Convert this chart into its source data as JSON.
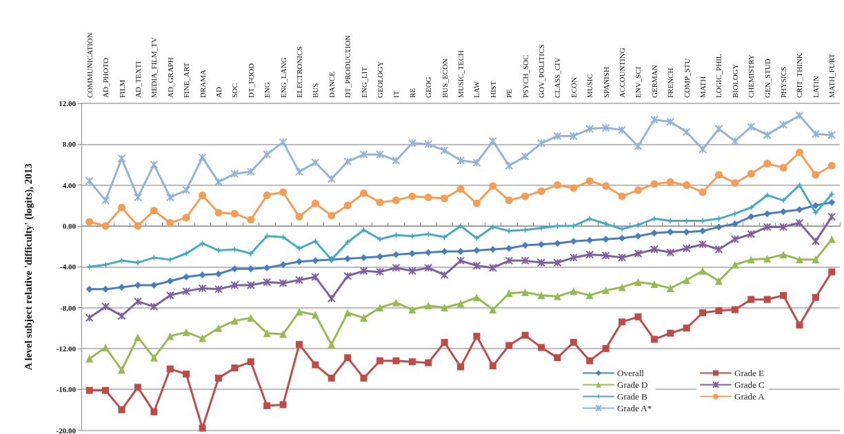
{
  "chart_data": {
    "type": "line",
    "ylabel": "A level subject relative 'difficulty' (logits), 2013",
    "categories": [
      "COMMUNICATION",
      "AD_PHOTO",
      "FILM",
      "AD_TEXTI",
      "MEDIA_FILM_TV",
      "AD_GRAPH",
      "FINE_ART",
      "DRAMA",
      "AD",
      "SOC",
      "DT_FOOD",
      "ENG",
      "ENG_LANG",
      "ELECTRONICS",
      "BUS",
      "DANCE",
      "DT_PRODUCTION",
      "ENG_LIT",
      "GEOLOGY",
      "IT",
      "RE",
      "GEOG",
      "BUS_ECON",
      "MUSIC_TECH",
      "LAW",
      "HIST",
      "PE",
      "PSYCH_SOC",
      "GOV_POLITICS",
      "CLASS_CIV",
      "ECON",
      "MUSIC",
      "SPANISH",
      "ACCOUNTING",
      "ENV_SCI",
      "GERMAN",
      "FRENCH",
      "COMP_STU",
      "MATH",
      "LOGIC_PHIL",
      "BIOLOGY",
      "CHEMISTRY",
      "GEN_STUD",
      "PHYSICS",
      "CRIT_THINK",
      "LATIN",
      "MATH_FURT"
    ],
    "series": [
      {
        "name": "Overall",
        "color": "#4a7ebb",
        "marker": "diamond",
        "values": [
          -6.2,
          -6.2,
          -6.0,
          -5.8,
          -5.8,
          -5.4,
          -5.0,
          -4.8,
          -4.7,
          -4.2,
          -4.2,
          -4.1,
          -3.8,
          -3.5,
          -3.4,
          -3.3,
          -3.2,
          -3.1,
          -3.0,
          -2.8,
          -2.7,
          -2.6,
          -2.5,
          -2.5,
          -2.4,
          -2.3,
          -2.2,
          -1.9,
          -1.8,
          -1.7,
          -1.5,
          -1.4,
          -1.3,
          -1.2,
          -1.0,
          -0.7,
          -0.6,
          -0.6,
          -0.5,
          -0.1,
          0.2,
          0.9,
          1.2,
          1.4,
          1.6,
          2.0,
          2.3
        ]
      },
      {
        "name": "Grade E",
        "color": "#be4b48",
        "marker": "square",
        "values": [
          -16.1,
          -16.1,
          -18.0,
          -15.8,
          -18.2,
          -14.0,
          -14.5,
          -19.8,
          -14.9,
          -13.9,
          -13.3,
          -17.6,
          -17.5,
          -11.6,
          -13.6,
          -14.9,
          -12.9,
          -14.9,
          -13.2,
          -13.2,
          -13.3,
          -13.4,
          -11.4,
          -13.8,
          -10.8,
          -13.7,
          -11.7,
          -10.7,
          -11.9,
          -12.9,
          -11.4,
          -13.2,
          -12.0,
          -9.4,
          -8.9,
          -11.1,
          -10.5,
          -10.0,
          -8.5,
          -8.3,
          -8.2,
          -7.2,
          -7.2,
          -6.8,
          -9.7,
          -7.0,
          -4.5
        ]
      },
      {
        "name": "Grade D",
        "color": "#98b954",
        "marker": "triangle",
        "values": [
          -13.0,
          -11.9,
          -14.1,
          -10.9,
          -12.9,
          -10.8,
          -10.4,
          -11.0,
          -10.0,
          -9.3,
          -9.0,
          -10.5,
          -10.6,
          -8.4,
          -8.7,
          -11.6,
          -8.5,
          -9.0,
          -8.0,
          -7.5,
          -8.2,
          -7.8,
          -8.0,
          -7.6,
          -7.0,
          -8.2,
          -6.6,
          -6.5,
          -6.8,
          -6.9,
          -6.4,
          -6.8,
          -6.3,
          -6.0,
          -5.5,
          -5.7,
          -6.1,
          -5.3,
          -4.4,
          -5.4,
          -3.8,
          -3.3,
          -3.2,
          -2.8,
          -3.3,
          -3.3,
          -1.3
        ]
      },
      {
        "name": "Grade C",
        "color": "#7d60a0",
        "marker": "cross",
        "values": [
          -9.0,
          -7.9,
          -8.8,
          -7.4,
          -7.9,
          -6.8,
          -6.4,
          -6.1,
          -6.2,
          -5.8,
          -5.8,
          -5.5,
          -5.6,
          -5.3,
          -5.0,
          -7.1,
          -4.9,
          -4.4,
          -4.5,
          -4.1,
          -4.4,
          -4.1,
          -4.8,
          -3.4,
          -3.9,
          -4.1,
          -3.4,
          -3.4,
          -3.6,
          -3.6,
          -3.1,
          -2.8,
          -2.9,
          -3.1,
          -2.7,
          -2.3,
          -2.6,
          -2.2,
          -1.8,
          -2.3,
          -1.3,
          -0.8,
          -0.1,
          -0.1,
          0.3,
          -1.5,
          0.9
        ]
      },
      {
        "name": "Grade B",
        "color": "#46aac5",
        "marker": "star",
        "values": [
          -4.0,
          -3.8,
          -3.4,
          -3.6,
          -3.1,
          -3.3,
          -2.7,
          -1.7,
          -2.4,
          -2.3,
          -2.7,
          -1.0,
          -1.1,
          -2.2,
          -1.5,
          -3.3,
          -1.6,
          -0.4,
          -1.3,
          -0.9,
          -1.0,
          -0.8,
          -1.1,
          0.0,
          -1.2,
          -0.1,
          -0.5,
          -0.4,
          -0.2,
          0.0,
          0.0,
          0.7,
          0.2,
          -0.3,
          0.1,
          0.7,
          0.5,
          0.5,
          0.5,
          0.7,
          1.2,
          1.8,
          3.0,
          2.5,
          4.0,
          1.3,
          3.1
        ]
      },
      {
        "name": "Grade A",
        "color": "#f59d56",
        "marker": "circle",
        "values": [
          0.4,
          0.0,
          1.8,
          0.0,
          1.5,
          0.3,
          0.8,
          3.0,
          1.3,
          1.2,
          0.6,
          3.0,
          3.3,
          0.9,
          2.2,
          1.0,
          2.0,
          3.2,
          2.3,
          2.5,
          2.9,
          2.8,
          2.7,
          3.6,
          2.2,
          3.9,
          2.5,
          2.9,
          3.4,
          4.0,
          3.7,
          4.4,
          3.9,
          2.9,
          3.5,
          4.1,
          4.3,
          4.0,
          3.3,
          5.0,
          4.2,
          5.1,
          6.1,
          5.7,
          7.2,
          5.0,
          5.9
        ]
      },
      {
        "name": "Grade A*",
        "color": "#93b3d7",
        "marker": "cross",
        "values": [
          4.4,
          2.5,
          6.6,
          2.8,
          6.0,
          2.8,
          3.5,
          6.7,
          4.3,
          5.1,
          5.3,
          7.0,
          8.2,
          5.3,
          6.2,
          4.6,
          6.3,
          7.0,
          7.0,
          6.4,
          8.1,
          8.0,
          7.4,
          6.4,
          6.2,
          8.3,
          5.9,
          6.8,
          8.1,
          8.8,
          8.8,
          9.5,
          9.6,
          9.4,
          7.8,
          10.4,
          10.2,
          9.2,
          7.5,
          9.5,
          8.3,
          9.7,
          8.9,
          9.9,
          10.8,
          9.0,
          8.9
        ]
      }
    ],
    "ylim": [
      -20,
      12
    ],
    "yticks": [
      {
        "value": -20,
        "label": "-20.00"
      },
      {
        "value": -16,
        "label": "-16.00"
      },
      {
        "value": -12,
        "label": "-12.00"
      },
      {
        "value": -8,
        "label": "-8.00"
      },
      {
        "value": -4,
        "label": "-4.00"
      },
      {
        "value": 0,
        "label": "0.00"
      },
      {
        "value": 4,
        "label": "4.00"
      },
      {
        "value": 8,
        "label": "8.00"
      },
      {
        "value": 12,
        "label": "12.00"
      }
    ],
    "grid": "y",
    "legend": "bottom right",
    "line_style": "solid"
  }
}
